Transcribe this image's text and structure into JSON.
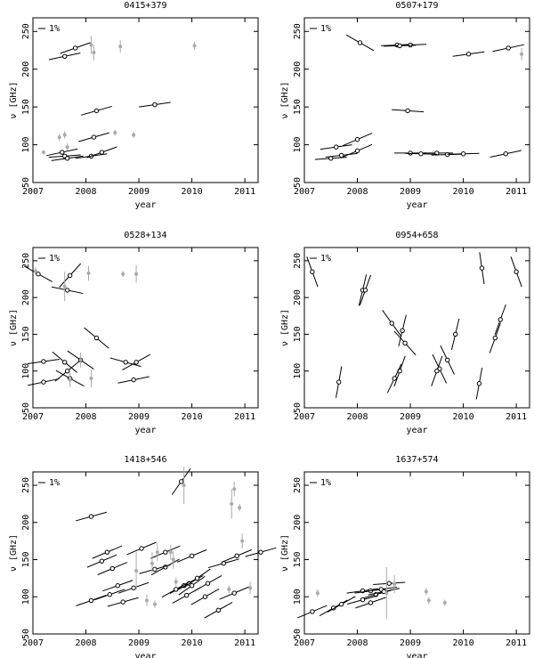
{
  "chart_data": [
    {
      "type": "scatter",
      "title": "0415+379",
      "xlabel": "year",
      "ylabel": "ν [GHz]",
      "legend_label": "1%",
      "xlim": [
        2007,
        2011.25
      ],
      "ylim": [
        50,
        268
      ],
      "xticks": [
        2007,
        2008,
        2009,
        2010,
        2011
      ],
      "yticks": [
        50,
        100,
        150,
        200,
        250
      ],
      "series": [
        {
          "color": "#000000",
          "x": [
            2007.6,
            2007.8,
            2008.2,
            2008.15,
            2008.1,
            2008.3,
            2007.55,
            2007.6,
            2007.65,
            2009.3
          ],
          "values": [
            217,
            228,
            145,
            110,
            85,
            90,
            90,
            85,
            82,
            153
          ],
          "slopes": [
            15,
            25,
            20,
            20,
            10,
            25,
            15,
            5,
            10,
            10
          ]
        },
        {
          "color": "#aaaaaa",
          "x": [
            2007.2,
            2007.5,
            2007.6,
            2008.1,
            2008.15,
            2008.65,
            2008.55,
            2008.9,
            2010.05,
            2007.65
          ],
          "values": [
            90,
            110,
            113,
            232,
            222,
            230,
            116,
            113,
            231,
            97
          ],
          "errors": [
            3,
            5,
            5,
            12,
            10,
            8,
            4,
            4,
            5,
            5
          ]
        }
      ]
    },
    {
      "type": "scatter",
      "title": "0507+179",
      "xlabel": "year",
      "ylabel": "ν [GHz]",
      "legend_label": "1%",
      "xlim": [
        2007,
        2011.25
      ],
      "ylim": [
        50,
        268
      ],
      "xticks": [
        2007,
        2008,
        2009,
        2010,
        2011
      ],
      "yticks": [
        50,
        100,
        150,
        200,
        250
      ],
      "series": [
        {
          "color": "#000000",
          "x": [
            2008.05,
            2008.75,
            2009.0,
            2008.8,
            2010.1,
            2010.85,
            2008.95,
            2007.6,
            2008.0,
            2008.0,
            2007.5,
            2007.7,
            2009.0,
            2009.5,
            2009.7,
            2010.0,
            2009.2,
            2010.8
          ],
          "values": [
            235,
            232,
            232,
            231,
            220,
            228,
            145,
            97,
            107,
            92,
            82,
            86,
            89,
            89,
            87,
            88,
            88,
            88
          ],
          "slopes": [
            -40,
            3,
            3,
            2,
            10,
            15,
            -5,
            10,
            30,
            30,
            5,
            8,
            0,
            0,
            2,
            2,
            -2,
            15
          ]
        },
        {
          "color": "#aaaaaa",
          "x": [
            2011.1
          ],
          "values": [
            220
          ],
          "errors": [
            8
          ]
        }
      ]
    },
    {
      "type": "scatter",
      "title": "0528+134",
      "xlabel": "year",
      "ylabel": "ν [GHz]",
      "legend_label": "1%",
      "xlim": [
        2007,
        2011.25
      ],
      "ylim": [
        50,
        268
      ],
      "xticks": [
        2007,
        2008,
        2009,
        2010,
        2011
      ],
      "yticks": [
        50,
        100,
        150,
        200,
        250
      ],
      "series": [
        {
          "color": "#000000",
          "x": [
            2007.1,
            2007.7,
            2007.65,
            2007.2,
            2007.2,
            2007.6,
            2007.65,
            2007.7,
            2007.9,
            2008.2,
            2008.75,
            2008.95,
            2008.9
          ],
          "values": [
            232,
            230,
            210,
            113,
            85,
            112,
            100,
            90,
            115,
            145,
            112,
            112,
            88
          ],
          "slopes": [
            -40,
            80,
            -15,
            10,
            15,
            -60,
            60,
            -40,
            -50,
            -60,
            -20,
            40,
            15
          ]
        },
        {
          "color": "#aaaaaa",
          "x": [
            2007.05,
            2007.6,
            2007.7,
            2008.05,
            2008.1,
            2008.7,
            2008.95,
            2007.9
          ],
          "values": [
            236,
            215,
            88,
            233,
            90,
            232,
            232,
            115
          ],
          "errors": [
            5,
            20,
            10,
            10,
            12,
            4,
            12,
            10
          ]
        }
      ]
    },
    {
      "type": "scatter",
      "title": "0954+658",
      "xlabel": "year",
      "ylabel": "ν [GHz]",
      "legend_label": "1%",
      "xlim": [
        2007,
        2011.25
      ],
      "ylim": [
        50,
        268
      ],
      "xticks": [
        2007,
        2008,
        2009,
        2010,
        2011
      ],
      "yticks": [
        50,
        100,
        150,
        200,
        250
      ],
      "series": [
        {
          "color": "#000000",
          "x": [
            2007.15,
            2007.65,
            2008.1,
            2008.15,
            2008.65,
            2008.85,
            2008.8,
            2008.7,
            2008.9,
            2009.55,
            2009.7,
            2009.85,
            2010.35,
            2010.3,
            2010.6,
            2010.7,
            2011.0,
            2009.5
          ],
          "values": [
            235,
            85,
            210,
            210,
            165,
            155,
            100,
            90,
            138,
            103,
            115,
            150,
            240,
            83,
            145,
            170,
            235,
            100
          ],
          "slopes": [
            -200,
            400,
            300,
            200,
            -100,
            300,
            200,
            150,
            -80,
            -150,
            -150,
            300,
            -500,
            400,
            200,
            200,
            -200,
            200
          ]
        }
      ]
    },
    {
      "type": "scatter",
      "title": "1418+546",
      "xlabel": "year",
      "ylabel": "ν [GHz]",
      "legend_label": "1%",
      "xlim": [
        2007,
        2011.25
      ],
      "ylim": [
        50,
        268
      ],
      "xticks": [
        2007,
        2008,
        2009,
        2010,
        2011
      ],
      "yticks": [
        50,
        100,
        150,
        200,
        250
      ],
      "series": [
        {
          "color": "#000000",
          "x": [
            2008.1,
            2008.4,
            2008.5,
            2008.3,
            2008.6,
            2008.1,
            2008.45,
            2008.7,
            2008.9,
            2009.05,
            2009.5,
            2009.5,
            2009.8,
            2009.85,
            2009.95,
            2010.0,
            2009.9,
            2010.1,
            2010.3,
            2010.5,
            2010.6,
            2010.85,
            2010.8,
            2011.3,
            2009.3,
            2010.0,
            2010.25,
            2009.7
          ],
          "values": [
            208,
            160,
            138,
            148,
            115,
            95,
            103,
            93,
            112,
            165,
            160,
            140,
            255,
            115,
            118,
            155,
            102,
            125,
            118,
            82,
            145,
            155,
            105,
            160,
            137,
            115,
            100,
            110
          ],
          "slopes": [
            20,
            30,
            30,
            30,
            25,
            25,
            25,
            20,
            25,
            30,
            30,
            40,
            100,
            40,
            40,
            30,
            40,
            50,
            40,
            40,
            20,
            30,
            30,
            20,
            20,
            50,
            40,
            40
          ]
        },
        {
          "color": "#aaaaaa",
          "x": [
            2008.95,
            2009.15,
            2009.3,
            2009.35,
            2009.25,
            2009.85,
            2009.6,
            2009.65,
            2010.75,
            2010.8,
            2010.9,
            2010.95,
            2010.7,
            2011.1,
            2009.7
          ],
          "values": [
            135,
            95,
            90,
            160,
            145,
            250,
            160,
            150,
            225,
            245,
            220,
            175,
            110,
            112,
            120
          ],
          "errors": [
            25,
            8,
            5,
            12,
            15,
            25,
            10,
            12,
            20,
            10,
            5,
            10,
            5,
            8,
            6
          ]
        }
      ]
    },
    {
      "type": "scatter",
      "title": "1637+574",
      "xlabel": "year",
      "ylabel": "ν [GHz]",
      "legend_label": "1%",
      "xlim": [
        2007,
        2011.25
      ],
      "ylim": [
        50,
        268
      ],
      "xticks": [
        2007,
        2008,
        2009,
        2010,
        2011
      ],
      "yticks": [
        50,
        100,
        150,
        200,
        250
      ],
      "series": [
        {
          "color": "#000000",
          "x": [
            2007.15,
            2007.55,
            2007.7,
            2008.1,
            2008.25,
            2008.35,
            2008.45,
            2008.5,
            2008.6,
            2008.25,
            2008.1
          ],
          "values": [
            80,
            85,
            90,
            108,
            108,
            103,
            110,
            107,
            118,
            92,
            96
          ],
          "slopes": [
            30,
            40,
            40,
            10,
            10,
            20,
            10,
            15,
            5,
            25,
            20
          ]
        },
        {
          "color": "#aaaaaa",
          "x": [
            2007.25,
            2008.55,
            2008.7,
            2009.3,
            2009.35,
            2009.65
          ],
          "values": [
            105,
            105,
            117,
            107,
            95,
            92
          ],
          "errors": [
            5,
            35,
            12,
            5,
            5,
            4
          ]
        }
      ]
    }
  ]
}
